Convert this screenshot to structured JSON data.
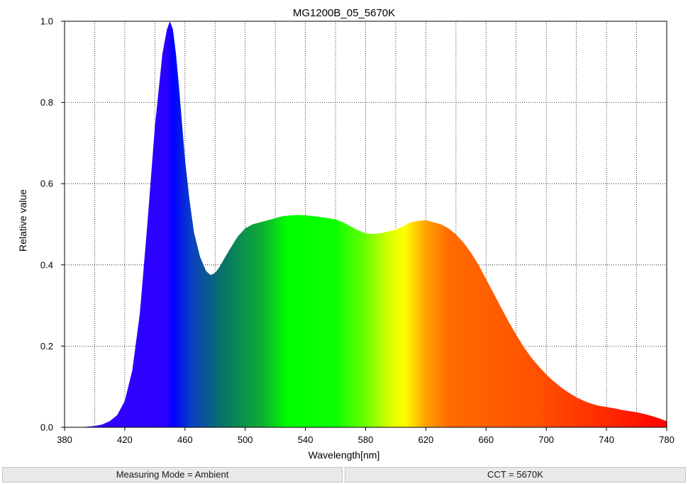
{
  "chart_data": {
    "type": "area",
    "title": "MG1200B_05_5670K",
    "xlabel": "Wavelength[nm]",
    "ylabel": "Relative value",
    "xlim": [
      380,
      780
    ],
    "ylim": [
      0,
      1
    ],
    "x_ticks": [
      380,
      420,
      460,
      500,
      540,
      580,
      620,
      660,
      700,
      740,
      780
    ],
    "x_tick_labels": [
      "380",
      "420",
      "460",
      "500",
      "540",
      "580",
      "620",
      "660",
      "700",
      "740",
      "780"
    ],
    "y_ticks": [
      0,
      0.2,
      0.4,
      0.6,
      0.8,
      1.0
    ],
    "y_tick_labels": [
      "0.0",
      "0.2",
      "0.4",
      "0.6",
      "0.8",
      "1.0"
    ],
    "grid": true,
    "fill": "visible-spectrum gradient",
    "series": [
      {
        "x": [
          380,
          390,
          400,
          405,
          410,
          415,
          420,
          425,
          430,
          435,
          440,
          445,
          448,
          450,
          452,
          454,
          456,
          458,
          460,
          463,
          466,
          470,
          474,
          477,
          480,
          483,
          486,
          490,
          495,
          500,
          505,
          510,
          515,
          520,
          525,
          530,
          535,
          540,
          545,
          550,
          555,
          560,
          565,
          570,
          575,
          580,
          585,
          590,
          595,
          600,
          605,
          610,
          615,
          620,
          625,
          630,
          635,
          640,
          645,
          650,
          655,
          660,
          665,
          670,
          675,
          680,
          685,
          690,
          695,
          700,
          705,
          710,
          715,
          720,
          725,
          730,
          735,
          740,
          745,
          750,
          755,
          760,
          765,
          770,
          775,
          780
        ],
        "y": [
          0,
          0,
          0.003,
          0.007,
          0.015,
          0.03,
          0.065,
          0.14,
          0.28,
          0.5,
          0.74,
          0.92,
          0.98,
          1.0,
          0.98,
          0.92,
          0.84,
          0.75,
          0.66,
          0.56,
          0.48,
          0.42,
          0.385,
          0.375,
          0.38,
          0.395,
          0.415,
          0.44,
          0.47,
          0.49,
          0.5,
          0.505,
          0.51,
          0.515,
          0.52,
          0.522,
          0.523,
          0.522,
          0.52,
          0.518,
          0.515,
          0.512,
          0.505,
          0.495,
          0.485,
          0.478,
          0.476,
          0.478,
          0.482,
          0.487,
          0.495,
          0.505,
          0.508,
          0.51,
          0.505,
          0.5,
          0.49,
          0.475,
          0.455,
          0.43,
          0.4,
          0.365,
          0.33,
          0.295,
          0.26,
          0.228,
          0.198,
          0.172,
          0.15,
          0.13,
          0.113,
          0.098,
          0.085,
          0.074,
          0.065,
          0.058,
          0.053,
          0.05,
          0.047,
          0.043,
          0.04,
          0.037,
          0.033,
          0.028,
          0.022,
          0.015
        ]
      }
    ]
  },
  "status": {
    "mode": "Measuring Mode = Ambient",
    "cct": "CCT = 5670K"
  },
  "colors": {
    "background": "#ffffff",
    "axis": "#000000",
    "grid": "#000000",
    "status_bg": "#e9e9e9"
  }
}
